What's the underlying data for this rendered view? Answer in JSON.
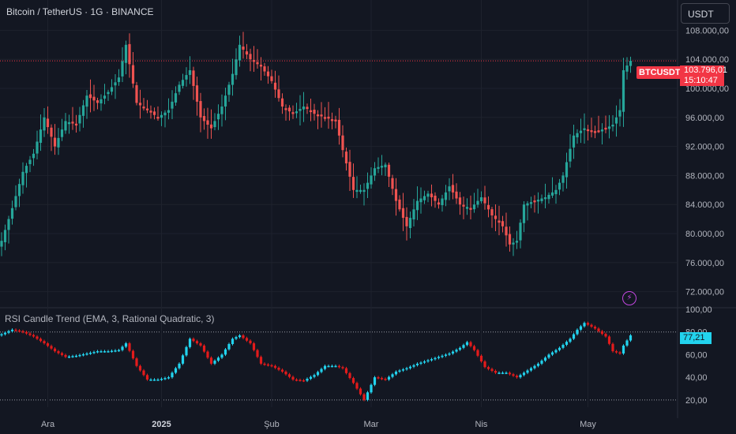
{
  "header": {
    "symbol_title": "Bitcoin / TetherUS · 1G · BINANCE",
    "currency_button": "USDT"
  },
  "indicator": {
    "title": "RSI Candle Trend (EMA, 3, Rational Quadratic, 3)",
    "last_value_label": "77,21"
  },
  "last_price": {
    "ticker": "BTCUSDT",
    "price": "103.796,01",
    "countdown": "15:10:47"
  },
  "icons": {
    "alert": "lightning-bolt-icon"
  },
  "colors": {
    "background": "#131722",
    "up": "#26a69a",
    "down": "#ef5350",
    "rsi_up": "#22d3ee",
    "rsi_down": "#e31b1b",
    "last_price": "#f23645",
    "grid": "#1e222d",
    "text": "#b2b5be"
  },
  "chart_data": [
    {
      "type": "candlestick",
      "title": "Bitcoin / TetherUS · 1G · BINANCE",
      "ylim": [
        70000,
        110000
      ],
      "y_ticks": [
        "108.000,00",
        "104.000,00",
        "100.000,00",
        "96.000,00",
        "92.000,00",
        "88.000,00",
        "84.000,00",
        "80.000,00",
        "76.000,00",
        "72.000,00"
      ],
      "y_tick_values": [
        108000,
        104000,
        100000,
        96000,
        92000,
        88000,
        84000,
        80000,
        76000,
        72000
      ],
      "x_ticks": [
        "Ara",
        "2025",
        "Şub",
        "Mar",
        "Nis",
        "May"
      ],
      "x_tick_index": [
        13,
        45,
        76,
        104,
        135,
        165
      ],
      "last_price": 103796.01,
      "close_anchors": [
        [
          0,
          79000
        ],
        [
          3,
          83500
        ],
        [
          6,
          88500
        ],
        [
          9,
          91000
        ],
        [
          12,
          96000
        ],
        [
          15,
          92000
        ],
        [
          18,
          95500
        ],
        [
          21,
          95000
        ],
        [
          24,
          99000
        ],
        [
          27,
          98000
        ],
        [
          30,
          99500
        ],
        [
          33,
          101500
        ],
        [
          35,
          106000
        ],
        [
          38,
          98000
        ],
        [
          41,
          97000
        ],
        [
          44,
          96000
        ],
        [
          47,
          97000
        ],
        [
          50,
          100500
        ],
        [
          53,
          102500
        ],
        [
          56,
          96000
        ],
        [
          59,
          94500
        ],
        [
          62,
          97500
        ],
        [
          65,
          102000
        ],
        [
          67,
          106000
        ],
        [
          70,
          104000
        ],
        [
          73,
          103000
        ],
        [
          76,
          101000
        ],
        [
          79,
          97500
        ],
        [
          82,
          96500
        ],
        [
          85,
          97500
        ],
        [
          88,
          96500
        ],
        [
          91,
          96000
        ],
        [
          94,
          95500
        ],
        [
          96,
          91500
        ],
        [
          99,
          86000
        ],
        [
          102,
          86000
        ],
        [
          105,
          89000
        ],
        [
          108,
          89500
        ],
        [
          111,
          84500
        ],
        [
          114,
          81000
        ],
        [
          117,
          84500
        ],
        [
          120,
          85500
        ],
        [
          123,
          84000
        ],
        [
          126,
          86500
        ],
        [
          129,
          84000
        ],
        [
          132,
          83500
        ],
        [
          135,
          85000
        ],
        [
          138,
          82500
        ],
        [
          141,
          81000
        ],
        [
          143,
          78500
        ],
        [
          145,
          79000
        ],
        [
          147,
          84000
        ],
        [
          150,
          84500
        ],
        [
          153,
          85000
        ],
        [
          156,
          86000
        ],
        [
          158,
          88000
        ],
        [
          161,
          93500
        ],
        [
          164,
          94500
        ],
        [
          167,
          94000
        ],
        [
          170,
          94500
        ],
        [
          172,
          95000
        ],
        [
          174,
          97000
        ],
        [
          175,
          102500
        ],
        [
          177,
          103800
        ]
      ]
    },
    {
      "type": "line",
      "title": "RSI Candle Trend (EMA, 3, Rational Quadratic, 3)",
      "ylim": [
        15,
        100
      ],
      "y_ticks": [
        "100,00",
        "80,00",
        "60,00",
        "40,00",
        "20,00"
      ],
      "y_tick_values": [
        100,
        80,
        60,
        40,
        20
      ],
      "dotted_levels": [
        80,
        20
      ],
      "last_value": 77.21,
      "anchors": [
        [
          0,
          78
        ],
        [
          3,
          82
        ],
        [
          6,
          80
        ],
        [
          9,
          76
        ],
        [
          12,
          70
        ],
        [
          15,
          63
        ],
        [
          18,
          58
        ],
        [
          21,
          59
        ],
        [
          24,
          61
        ],
        [
          27,
          63
        ],
        [
          30,
          63
        ],
        [
          33,
          64
        ],
        [
          35,
          70
        ],
        [
          38,
          50
        ],
        [
          41,
          38
        ],
        [
          44,
          38
        ],
        [
          47,
          40
        ],
        [
          50,
          52
        ],
        [
          53,
          74
        ],
        [
          56,
          68
        ],
        [
          59,
          52
        ],
        [
          62,
          60
        ],
        [
          65,
          74
        ],
        [
          67,
          77
        ],
        [
          70,
          70
        ],
        [
          73,
          52
        ],
        [
          76,
          50
        ],
        [
          79,
          45
        ],
        [
          82,
          38
        ],
        [
          85,
          37
        ],
        [
          88,
          42
        ],
        [
          91,
          50
        ],
        [
          94,
          50
        ],
        [
          96,
          48
        ],
        [
          99,
          35
        ],
        [
          102,
          20
        ],
        [
          105,
          40
        ],
        [
          108,
          38
        ],
        [
          111,
          45
        ],
        [
          114,
          48
        ],
        [
          117,
          52
        ],
        [
          120,
          55
        ],
        [
          123,
          58
        ],
        [
          126,
          61
        ],
        [
          129,
          66
        ],
        [
          131,
          71
        ],
        [
          133,
          64
        ],
        [
          136,
          49
        ],
        [
          139,
          44
        ],
        [
          142,
          44
        ],
        [
          145,
          40
        ],
        [
          148,
          46
        ],
        [
          151,
          52
        ],
        [
          154,
          60
        ],
        [
          157,
          66
        ],
        [
          160,
          74
        ],
        [
          162,
          82
        ],
        [
          164,
          88
        ],
        [
          167,
          83
        ],
        [
          170,
          76
        ],
        [
          172,
          63
        ],
        [
          174,
          61
        ],
        [
          175,
          68
        ],
        [
          177,
          77
        ]
      ]
    }
  ]
}
